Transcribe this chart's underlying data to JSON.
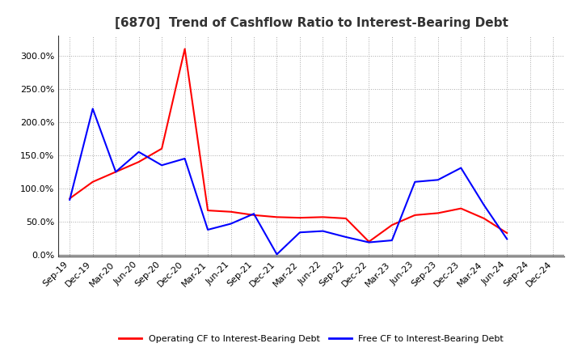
{
  "title": "[6870]  Trend of Cashflow Ratio to Interest-Bearing Debt",
  "x_labels": [
    "Sep-19",
    "Dec-19",
    "Mar-20",
    "Jun-20",
    "Sep-20",
    "Dec-20",
    "Mar-21",
    "Jun-21",
    "Sep-21",
    "Dec-21",
    "Mar-22",
    "Jun-22",
    "Sep-22",
    "Dec-22",
    "Mar-23",
    "Jun-23",
    "Sep-23",
    "Dec-23",
    "Mar-24",
    "Jun-24",
    "Sep-24",
    "Dec-24"
  ],
  "operating_cf": [
    0.85,
    1.1,
    1.25,
    1.4,
    1.6,
    3.1,
    0.67,
    0.65,
    0.6,
    0.57,
    0.56,
    0.57,
    0.55,
    0.2,
    0.45,
    0.6,
    0.63,
    0.7,
    0.55,
    0.33,
    null,
    null
  ],
  "free_cf": [
    0.83,
    2.2,
    1.25,
    1.55,
    1.35,
    1.45,
    0.38,
    0.47,
    0.62,
    0.01,
    0.34,
    0.36,
    0.27,
    0.19,
    0.22,
    1.1,
    1.13,
    1.31,
    0.75,
    0.24,
    null,
    null
  ],
  "operating_color": "#FF0000",
  "free_color": "#0000FF",
  "background_color": "#FFFFFF",
  "grid_color": "#AAAAAA",
  "ylim": [
    -0.02,
    3.3
  ],
  "yticks": [
    0.0,
    0.5,
    1.0,
    1.5,
    2.0,
    2.5,
    3.0
  ],
  "ytick_labels": [
    "0.0%",
    "50.0%",
    "100.0%",
    "150.0%",
    "200.0%",
    "250.0%",
    "300.0%"
  ],
  "legend_op": "Operating CF to Interest-Bearing Debt",
  "legend_free": "Free CF to Interest-Bearing Debt",
  "title_fontsize": 11,
  "tick_fontsize": 8,
  "legend_fontsize": 8
}
